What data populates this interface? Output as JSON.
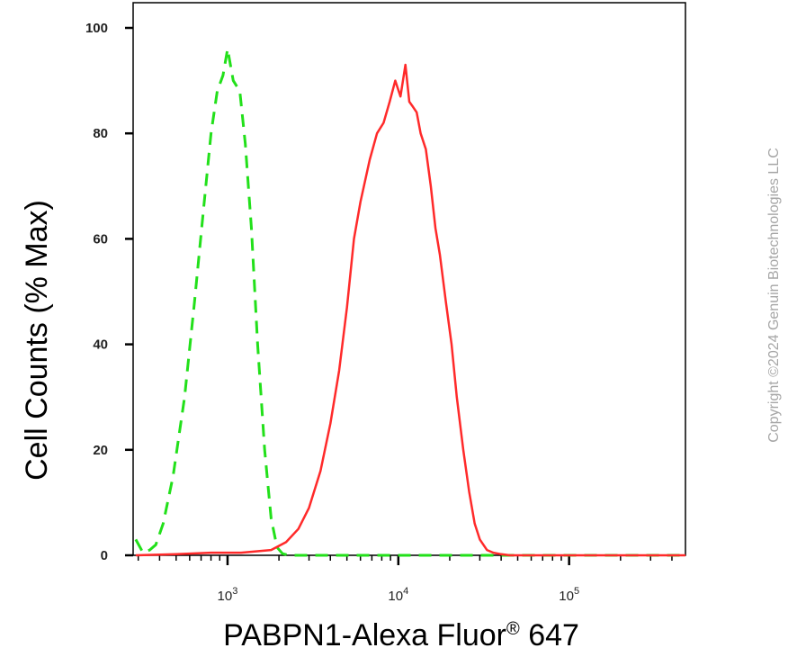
{
  "chart_data": {
    "type": "line",
    "title": "",
    "xlabel": "PABPN1-Alexa Fluor",
    "xlabel_mark": "®",
    "xlabel_suffix": " 647",
    "ylabel": "Cell Counts (% Max)",
    "xscale": "log",
    "xlim": [
      280,
      480000
    ],
    "ylim": [
      0,
      100
    ],
    "grid": false,
    "y_ticks": [
      0,
      20,
      40,
      60,
      80,
      100
    ],
    "y_tick_labels": [
      "0",
      "20",
      "40",
      "60",
      "80",
      "100"
    ],
    "x_major_ticks": [
      {
        "value": 1000,
        "base": "10",
        "exp": "3"
      },
      {
        "value": 10000,
        "base": "10",
        "exp": "4"
      },
      {
        "value": 100000,
        "base": "10",
        "exp": "5"
      }
    ],
    "series": [
      {
        "style": "dashed",
        "color": "#22e01a",
        "x": [
          290,
          320,
          350,
          380,
          420,
          480,
          560,
          640,
          720,
          800,
          870,
          940,
          1000,
          1080,
          1180,
          1270,
          1380,
          1500,
          1650,
          1800,
          1950,
          2100,
          2300,
          2600,
          3000,
          5000,
          10000,
          50000,
          480000
        ],
        "y": [
          3,
          0.5,
          1,
          2,
          6,
          15,
          30,
          48,
          65,
          80,
          88,
          91,
          96,
          90,
          88,
          78,
          62,
          40,
          20,
          7,
          1.5,
          0.3,
          0,
          0,
          0,
          0,
          0,
          0,
          0
        ]
      },
      {
        "style": "solid",
        "color": "#ff2a2a",
        "x": [
          290,
          500,
          800,
          1200,
          1800,
          2200,
          2600,
          3000,
          3500,
          4000,
          4500,
          5000,
          5500,
          6000,
          6800,
          7500,
          8200,
          8900,
          9600,
          10300,
          11000,
          11600,
          12200,
          12800,
          13500,
          14500,
          15500,
          16500,
          17500,
          19000,
          20500,
          22000,
          24000,
          26000,
          28000,
          30000,
          33000,
          36000,
          40000,
          45000,
          50000,
          60000,
          100000,
          480000
        ],
        "y": [
          0,
          0.2,
          0.5,
          0.5,
          1,
          2.5,
          5,
          9,
          16,
          25,
          35,
          47,
          60,
          67,
          75,
          80,
          82,
          86,
          90,
          87,
          93,
          86,
          85,
          84,
          80,
          77,
          70,
          62,
          57,
          48,
          40,
          30,
          20,
          12,
          6,
          3,
          1,
          0.5,
          0.2,
          0,
          0,
          0,
          0,
          0
        ]
      }
    ]
  },
  "watermark": "Copyright ©2024 Genuin Biotechnologies LLC"
}
